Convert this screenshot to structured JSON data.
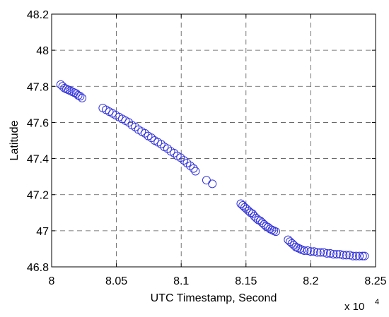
{
  "chart_data": {
    "type": "scatter",
    "xlabel": "UTC Timestamp, Second",
    "ylabel": "Latitude",
    "x_multiplier_prefix": "x 10",
    "x_multiplier_exponent": "4",
    "xlim": [
      8.0,
      8.25
    ],
    "ylim": [
      46.8,
      48.2
    ],
    "x_ticks": [
      8.0,
      8.05,
      8.1,
      8.15,
      8.2,
      8.25
    ],
    "x_tick_labels": [
      "8",
      "8.05",
      "8.1",
      "8.15",
      "8.2",
      "8.25"
    ],
    "y_ticks": [
      46.8,
      47.0,
      47.2,
      47.4,
      47.6,
      47.8,
      48.0,
      48.2
    ],
    "y_tick_labels": [
      "46.8",
      "47",
      "47.2",
      "47.4",
      "47.6",
      "47.8",
      "48",
      "48.2"
    ],
    "grid": true,
    "marker": "circle",
    "marker_color": "#3333dd",
    "series": [
      {
        "x": [
          8.007,
          8.0085,
          8.01,
          8.0115,
          8.013,
          8.0145,
          8.016,
          8.0175,
          8.019,
          8.0205,
          8.022,
          8.0235,
          8.0395,
          8.042,
          8.0445,
          8.047,
          8.0495,
          8.052,
          8.0545,
          8.057,
          8.0595,
          8.062,
          8.0645,
          8.067,
          8.0695,
          8.072,
          8.0745,
          8.077,
          8.0795,
          8.082,
          8.0845,
          8.087,
          8.0895,
          8.092,
          8.0945,
          8.097,
          8.0995,
          8.102,
          8.1045,
          8.107,
          8.1095,
          8.111,
          8.1195,
          8.124,
          8.146,
          8.1475,
          8.149,
          8.1505,
          8.152,
          8.1535,
          8.155,
          8.1565,
          8.158,
          8.1595,
          8.161,
          8.1625,
          8.164,
          8.1655,
          8.167,
          8.1685,
          8.17,
          8.1715,
          8.173,
          8.1825,
          8.184,
          8.1855,
          8.187,
          8.1885,
          8.19,
          8.1915,
          8.193,
          8.195,
          8.1975,
          8.2,
          8.2025,
          8.205,
          8.2075,
          8.21,
          8.2125,
          8.215,
          8.2175,
          8.22,
          8.2225,
          8.225,
          8.2275,
          8.23,
          8.2325,
          8.235,
          8.2375,
          8.24,
          8.2415
        ],
        "y": [
          47.81,
          47.8,
          47.79,
          47.785,
          47.78,
          47.775,
          47.77,
          47.765,
          47.76,
          47.75,
          47.745,
          47.735,
          47.68,
          47.67,
          47.66,
          47.65,
          47.64,
          47.63,
          47.62,
          47.61,
          47.6,
          47.585,
          47.575,
          47.56,
          47.55,
          47.54,
          47.525,
          47.515,
          47.5,
          47.49,
          47.48,
          47.465,
          47.455,
          47.44,
          47.43,
          47.415,
          47.405,
          47.39,
          47.375,
          47.36,
          47.345,
          47.33,
          47.28,
          47.26,
          47.15,
          47.14,
          47.13,
          47.12,
          47.11,
          47.1,
          47.095,
          47.08,
          47.07,
          47.06,
          47.055,
          47.045,
          47.035,
          47.025,
          47.02,
          47.01,
          47.005,
          47.0,
          46.995,
          46.95,
          46.94,
          46.93,
          46.92,
          46.91,
          46.905,
          46.9,
          46.895,
          46.89,
          46.89,
          46.885,
          46.885,
          46.88,
          46.88,
          46.88,
          46.875,
          46.875,
          46.87,
          46.87,
          46.87,
          46.865,
          46.865,
          46.865,
          46.86,
          46.86,
          46.86,
          46.86,
          46.86
        ]
      }
    ]
  }
}
